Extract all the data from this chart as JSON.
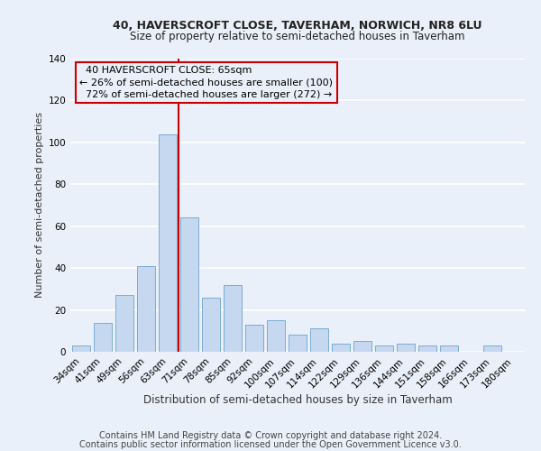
{
  "title": "40, HAVERSCROFT CLOSE, TAVERHAM, NORWICH, NR8 6LU",
  "subtitle": "Size of property relative to semi-detached houses in Taverham",
  "xlabel": "Distribution of semi-detached houses by size in Taverham",
  "ylabel": "Number of semi-detached properties",
  "footer1": "Contains HM Land Registry data © Crown copyright and database right 2024.",
  "footer2": "Contains public sector information licensed under the Open Government Licence v3.0.",
  "categories": [
    "34sqm",
    "41sqm",
    "49sqm",
    "56sqm",
    "63sqm",
    "71sqm",
    "78sqm",
    "85sqm",
    "92sqm",
    "100sqm",
    "107sqm",
    "114sqm",
    "122sqm",
    "129sqm",
    "136sqm",
    "144sqm",
    "151sqm",
    "158sqm",
    "166sqm",
    "173sqm",
    "180sqm"
  ],
  "values": [
    3,
    14,
    27,
    41,
    104,
    64,
    26,
    32,
    13,
    15,
    8,
    11,
    4,
    5,
    3,
    4,
    3,
    3,
    0,
    3,
    0
  ],
  "bar_color": "#c5d8f0",
  "bar_edge_color": "#7aadd4",
  "property_label": "40 HAVERSCROFT CLOSE: 65sqm",
  "pct_smaller": 26,
  "pct_larger": 72,
  "n_smaller": 100,
  "n_larger": 272,
  "vline_color": "#cc0000",
  "vline_x": 4.5,
  "ylim": [
    0,
    140
  ],
  "yticks": [
    0,
    20,
    40,
    60,
    80,
    100,
    120,
    140
  ],
  "bg_color": "#eaf0f9",
  "grid_color": "#ffffff",
  "title_fontsize": 9,
  "subtitle_fontsize": 8.5,
  "ylabel_fontsize": 8,
  "xlabel_fontsize": 8.5,
  "tick_fontsize": 7.5,
  "footer_fontsize": 7,
  "annot_fontsize": 8
}
